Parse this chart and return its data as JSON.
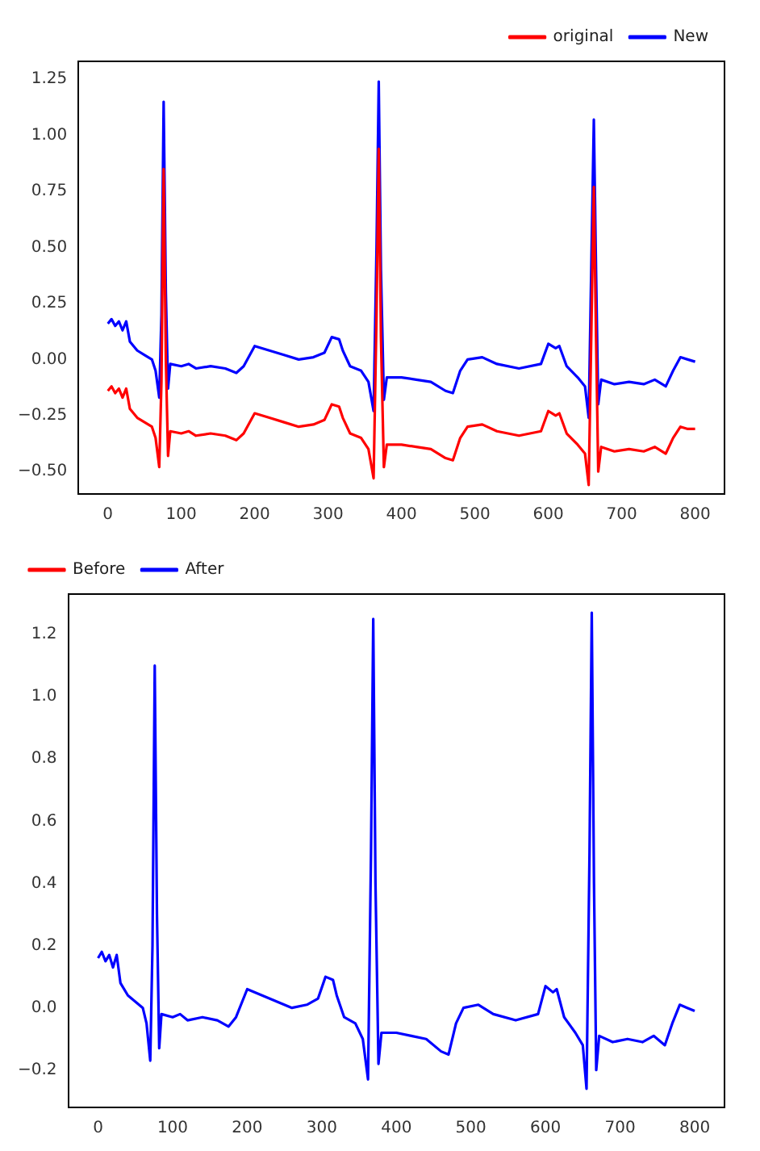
{
  "chart_data": [
    {
      "type": "line",
      "legend": "top right",
      "marker": "none",
      "grid": false,
      "x": [
        0,
        5,
        10,
        15,
        20,
        25,
        30,
        40,
        50,
        60,
        65,
        70,
        73,
        76,
        79,
        82,
        85,
        100,
        110,
        120,
        140,
        160,
        175,
        185,
        200,
        220,
        240,
        260,
        280,
        295,
        305,
        315,
        320,
        330,
        345,
        355,
        362,
        366,
        369,
        372,
        376,
        380,
        400,
        420,
        440,
        460,
        470,
        480,
        490,
        510,
        530,
        560,
        590,
        600,
        610,
        615,
        625,
        640,
        650,
        655,
        659,
        662,
        665,
        668,
        672,
        690,
        710,
        730,
        745,
        760,
        770,
        780,
        790,
        800
      ],
      "series": [
        {
          "name": "original",
          "color": "#ff0000",
          "values": [
            -0.14,
            -0.12,
            -0.15,
            -0.13,
            -0.17,
            -0.13,
            -0.22,
            -0.26,
            -0.28,
            -0.3,
            -0.35,
            -0.48,
            -0.1,
            0.85,
            0.0,
            -0.43,
            -0.32,
            -0.33,
            -0.32,
            -0.34,
            -0.33,
            -0.34,
            -0.36,
            -0.33,
            -0.24,
            -0.26,
            -0.28,
            -0.3,
            -0.29,
            -0.27,
            -0.2,
            -0.21,
            -0.26,
            -0.33,
            -0.35,
            -0.4,
            -0.53,
            0.2,
            0.94,
            0.1,
            -0.48,
            -0.38,
            -0.38,
            -0.39,
            -0.4,
            -0.44,
            -0.45,
            -0.35,
            -0.3,
            -0.29,
            -0.32,
            -0.34,
            -0.32,
            -0.23,
            -0.25,
            -0.24,
            -0.33,
            -0.38,
            -0.42,
            -0.56,
            0.2,
            0.77,
            0.1,
            -0.5,
            -0.39,
            -0.41,
            -0.4,
            -0.41,
            -0.39,
            -0.42,
            -0.35,
            -0.3,
            -0.31,
            -0.31
          ]
        },
        {
          "name": "New",
          "color": "#0000ff",
          "values": [
            0.16,
            0.18,
            0.15,
            0.17,
            0.13,
            0.17,
            0.08,
            0.04,
            0.02,
            0.0,
            -0.05,
            -0.17,
            0.2,
            1.15,
            0.3,
            -0.13,
            -0.02,
            -0.03,
            -0.02,
            -0.04,
            -0.03,
            -0.04,
            -0.06,
            -0.03,
            0.06,
            0.04,
            0.02,
            0.0,
            0.01,
            0.03,
            0.1,
            0.09,
            0.04,
            -0.03,
            -0.05,
            -0.1,
            -0.23,
            0.5,
            1.24,
            0.4,
            -0.18,
            -0.08,
            -0.08,
            -0.09,
            -0.1,
            -0.14,
            -0.15,
            -0.05,
            0.0,
            0.01,
            -0.02,
            -0.04,
            -0.02,
            0.07,
            0.05,
            0.06,
            -0.03,
            -0.08,
            -0.12,
            -0.26,
            0.5,
            1.07,
            0.4,
            -0.2,
            -0.09,
            -0.11,
            -0.1,
            -0.11,
            -0.09,
            -0.12,
            -0.05,
            0.01,
            0.0,
            -0.01
          ]
        }
      ],
      "xlim": [
        -40,
        840
      ],
      "xticks": [
        0,
        100,
        200,
        300,
        400,
        500,
        600,
        700,
        800
      ],
      "ylim": [
        -0.6,
        1.33
      ],
      "yticks": [
        {
          "value": -0.5,
          "label": "−0.50"
        },
        {
          "value": -0.25,
          "label": "−0.25"
        },
        {
          "value": 0,
          "label": "0.00"
        },
        0.25,
        {
          "value": 0.5,
          "label": "0.50"
        },
        0.75,
        {
          "value": 1,
          "label": "1.00"
        },
        1.25
      ]
    },
    {
      "type": "line",
      "legend": "top left",
      "marker": "none",
      "grid": false,
      "x": [
        0,
        5,
        10,
        15,
        20,
        25,
        30,
        40,
        50,
        60,
        65,
        70,
        73,
        76,
        79,
        82,
        85,
        100,
        110,
        120,
        140,
        160,
        175,
        185,
        200,
        220,
        240,
        260,
        280,
        295,
        305,
        315,
        320,
        330,
        345,
        355,
        362,
        366,
        369,
        372,
        376,
        380,
        400,
        420,
        440,
        460,
        470,
        480,
        490,
        510,
        530,
        560,
        590,
        600,
        610,
        615,
        625,
        640,
        650,
        655,
        659,
        662,
        665,
        668,
        672,
        690,
        710,
        730,
        745,
        760,
        770,
        780,
        790,
        800
      ],
      "series": [
        {
          "name": "Before",
          "color": "#ff0000",
          "values": [
            null,
            null,
            null,
            null,
            null,
            null,
            null,
            null,
            null,
            null,
            null,
            null,
            null,
            null,
            null,
            null,
            null,
            null,
            null,
            null,
            null,
            null,
            null,
            null,
            null,
            null,
            null,
            null,
            null,
            null,
            null,
            null,
            null,
            null,
            null,
            null,
            null,
            null,
            null,
            null,
            null,
            null,
            null,
            null,
            null,
            null,
            null,
            null,
            null,
            null,
            null,
            null,
            null,
            null,
            null,
            null,
            null,
            null,
            null,
            null,
            null,
            null,
            null,
            null,
            null,
            null,
            null,
            null,
            null,
            null,
            null,
            null,
            null,
            null
          ]
        },
        {
          "name": "After",
          "color": "#0000ff",
          "values": [
            0.16,
            0.18,
            0.15,
            0.17,
            0.13,
            0.17,
            0.08,
            0.04,
            0.02,
            0.0,
            -0.05,
            -0.17,
            0.2,
            1.1,
            0.3,
            -0.13,
            -0.02,
            -0.03,
            -0.02,
            -0.04,
            -0.03,
            -0.04,
            -0.06,
            -0.03,
            0.06,
            0.04,
            0.02,
            0.0,
            0.01,
            0.03,
            0.1,
            0.09,
            0.04,
            -0.03,
            -0.05,
            -0.1,
            -0.23,
            0.5,
            1.25,
            0.4,
            -0.18,
            -0.08,
            -0.08,
            -0.09,
            -0.1,
            -0.14,
            -0.15,
            -0.05,
            0.0,
            0.01,
            -0.02,
            -0.04,
            -0.02,
            0.07,
            0.05,
            0.06,
            -0.03,
            -0.08,
            -0.12,
            -0.26,
            0.5,
            1.27,
            0.4,
            -0.2,
            -0.09,
            -0.11,
            -0.1,
            -0.11,
            -0.09,
            -0.12,
            -0.05,
            0.01,
            0.0,
            -0.01
          ]
        }
      ],
      "xlim": [
        -40,
        840
      ],
      "xticks": [
        0,
        100,
        200,
        300,
        400,
        500,
        600,
        700,
        800
      ],
      "ylim": [
        -0.32,
        1.33
      ],
      "yticks": [
        {
          "value": -0.2,
          "label": "−0.2"
        },
        {
          "value": 0,
          "label": "0.0"
        },
        0.2,
        0.4,
        0.6,
        0.8,
        {
          "value": 1,
          "label": "1.0"
        },
        1.2
      ]
    }
  ]
}
